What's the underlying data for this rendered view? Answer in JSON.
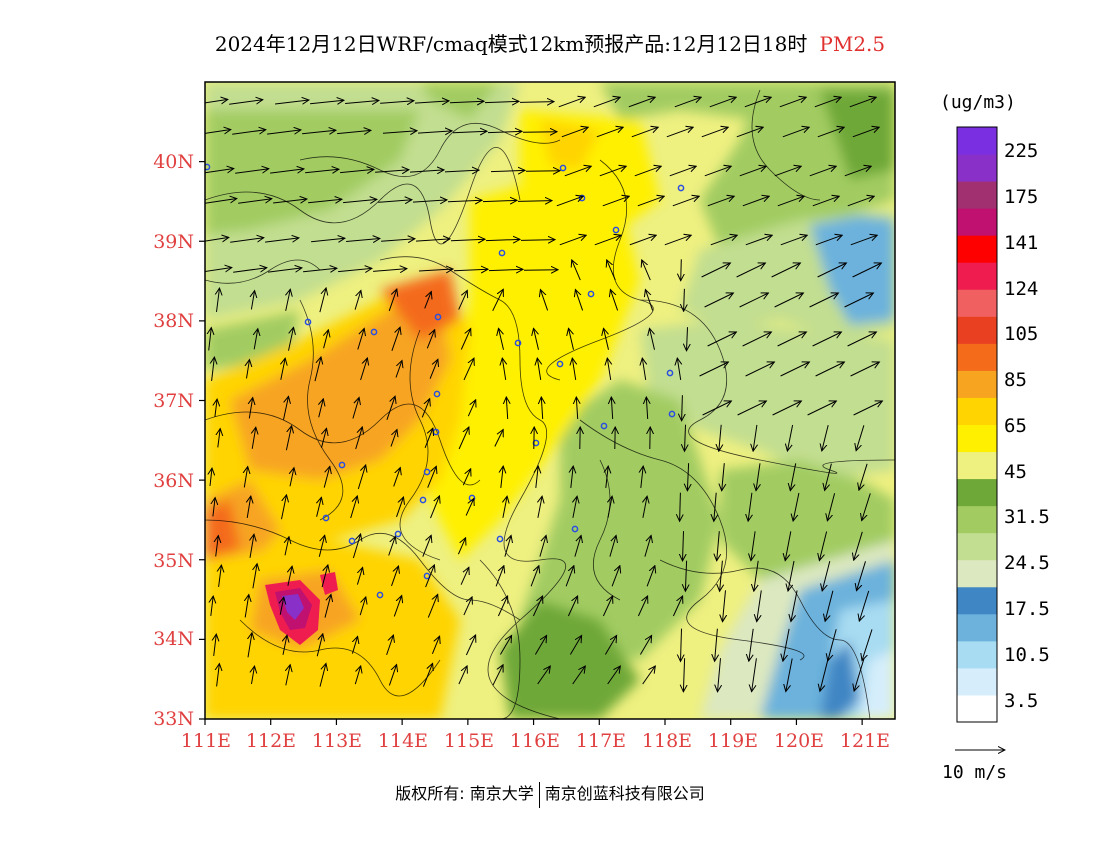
{
  "title": {
    "main": "2024年12月12日WRF/cmaq模式12km预报产品:12月12日18时",
    "variable": "PM2.5"
  },
  "map": {
    "lat_labels": [
      "40N",
      "39N",
      "38N",
      "37N",
      "36N",
      "35N",
      "34N",
      "33N"
    ],
    "lat_values": [
      40,
      39,
      38,
      37,
      36,
      35,
      34,
      33
    ],
    "lon_labels": [
      "111E",
      "112E",
      "113E",
      "114E",
      "115E",
      "116E",
      "117E",
      "118E",
      "119E",
      "120E",
      "121E"
    ],
    "lon_values": [
      111,
      112,
      113,
      114,
      115,
      116,
      117,
      118,
      119,
      120,
      121
    ],
    "extent": {
      "lon_min": 111,
      "lon_max": 121.5,
      "lat_min": 33,
      "lat_max": 41
    }
  },
  "legend": {
    "unit": "(ug/m3)",
    "labels": [
      "225",
      "175",
      "141",
      "124",
      "105",
      "85",
      "65",
      "45",
      "31.5",
      "24.5",
      "17.5",
      "10.5",
      "3.5"
    ],
    "colors": [
      "#ffffff",
      "#d6eefb",
      "#a8dcf2",
      "#6cb2dc",
      "#3f86c4",
      "#dce8c0",
      "#c2de90",
      "#a2cc62",
      "#6ea838",
      "#eef080",
      "#fff000",
      "#ffd400",
      "#f7a420",
      "#f46b1a",
      "#e84020",
      "#f06060",
      "#ef1d4f",
      "#ff0000",
      "#c01070",
      "#a03070",
      "#8830c8",
      "#7a30e0"
    ]
  },
  "wind_reference": {
    "label": "10 m/s"
  },
  "copyright": {
    "left": "版权所有: 南京大学",
    "right": "南京创蓝科技有限公司"
  }
}
